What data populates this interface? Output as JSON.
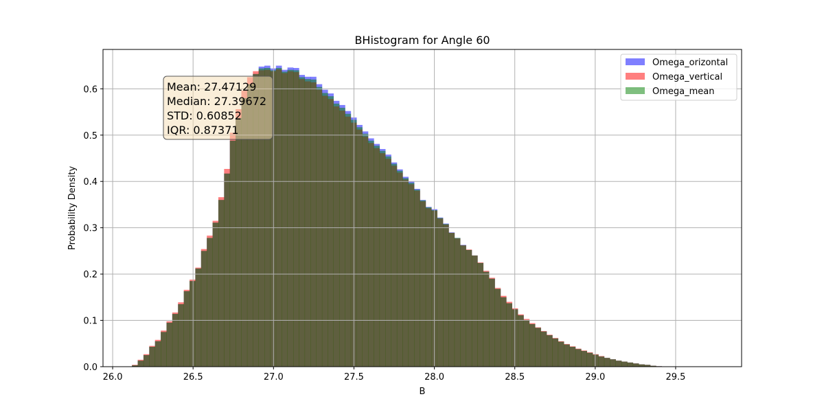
{
  "chart_data": {
    "type": "bar",
    "title": "BHistogram for Angle 60",
    "xlabel": "B",
    "ylabel": "Probability Density",
    "xlim": [
      25.94,
      29.91
    ],
    "ylim": [
      0,
      0.685
    ],
    "xticks": [
      "26.0",
      "26.5",
      "27.0",
      "27.5",
      "28.0",
      "28.5",
      "29.0",
      "29.5"
    ],
    "yticks": [
      "0.0",
      "0.1",
      "0.2",
      "0.3",
      "0.4",
      "0.5",
      "0.6"
    ],
    "grid": true,
    "legend_position": "top-right",
    "bin_start": 26.12,
    "bin_width": 0.0358,
    "series": [
      {
        "name": "Omega_orizontal",
        "color": "#0000ff",
        "alpha": 0.5,
        "values": [
          0.003,
          0.013,
          0.025,
          0.043,
          0.055,
          0.075,
          0.095,
          0.114,
          0.135,
          0.163,
          0.185,
          0.212,
          0.25,
          0.278,
          0.311,
          0.36,
          0.417,
          0.488,
          0.537,
          0.58,
          0.61,
          0.632,
          0.648,
          0.65,
          0.644,
          0.65,
          0.641,
          0.646,
          0.645,
          0.63,
          0.626,
          0.626,
          0.61,
          0.598,
          0.59,
          0.574,
          0.565,
          0.552,
          0.538,
          0.522,
          0.508,
          0.493,
          0.481,
          0.47,
          0.458,
          0.441,
          0.426,
          0.41,
          0.4,
          0.384,
          0.36,
          0.345,
          0.34,
          0.322,
          0.309,
          0.29,
          0.278,
          0.263,
          0.252,
          0.24,
          0.224,
          0.205,
          0.19,
          0.168,
          0.15,
          0.137,
          0.124,
          0.111,
          0.101,
          0.092,
          0.084,
          0.076,
          0.068,
          0.061,
          0.054,
          0.048,
          0.043,
          0.038,
          0.034,
          0.03,
          0.026,
          0.022,
          0.019,
          0.016,
          0.013,
          0.011,
          0.009,
          0.007,
          0.005,
          0.004,
          0.002,
          0.001
        ]
      },
      {
        "name": "Omega_vertical",
        "color": "#ff0000",
        "alpha": 0.5,
        "values": [
          0.004,
          0.015,
          0.027,
          0.045,
          0.058,
          0.078,
          0.098,
          0.117,
          0.139,
          0.166,
          0.188,
          0.214,
          0.254,
          0.283,
          0.315,
          0.366,
          0.427,
          0.505,
          0.556,
          0.596,
          0.625,
          0.638,
          0.64,
          0.641,
          0.638,
          0.642,
          0.634,
          0.638,
          0.636,
          0.621,
          0.616,
          0.614,
          0.598,
          0.585,
          0.578,
          0.562,
          0.553,
          0.54,
          0.527,
          0.512,
          0.497,
          0.483,
          0.472,
          0.461,
          0.449,
          0.434,
          0.419,
          0.404,
          0.394,
          0.38,
          0.357,
          0.342,
          0.337,
          0.32,
          0.307,
          0.289,
          0.277,
          0.262,
          0.253,
          0.24,
          0.225,
          0.207,
          0.192,
          0.17,
          0.153,
          0.14,
          0.126,
          0.113,
          0.103,
          0.094,
          0.085,
          0.077,
          0.069,
          0.062,
          0.055,
          0.049,
          0.044,
          0.039,
          0.035,
          0.031,
          0.027,
          0.023,
          0.019,
          0.016,
          0.013,
          0.011,
          0.009,
          0.007,
          0.005,
          0.004,
          0.002,
          0.001
        ]
      },
      {
        "name": "Omega_mean",
        "color": "#008000",
        "alpha": 0.5,
        "values": [
          0.003,
          0.013,
          0.025,
          0.043,
          0.055,
          0.075,
          0.095,
          0.114,
          0.135,
          0.163,
          0.185,
          0.212,
          0.25,
          0.278,
          0.311,
          0.36,
          0.417,
          0.488,
          0.537,
          0.58,
          0.61,
          0.632,
          0.644,
          0.645,
          0.64,
          0.645,
          0.637,
          0.641,
          0.64,
          0.625,
          0.621,
          0.62,
          0.604,
          0.591,
          0.584,
          0.568,
          0.559,
          0.546,
          0.533,
          0.517,
          0.503,
          0.488,
          0.477,
          0.466,
          0.454,
          0.438,
          0.423,
          0.407,
          0.397,
          0.382,
          0.359,
          0.344,
          0.338,
          0.321,
          0.308,
          0.289,
          0.278,
          0.262,
          0.252,
          0.24,
          0.224,
          0.205,
          0.19,
          0.168,
          0.15,
          0.137,
          0.124,
          0.111,
          0.101,
          0.092,
          0.084,
          0.076,
          0.068,
          0.061,
          0.054,
          0.048,
          0.043,
          0.038,
          0.034,
          0.03,
          0.026,
          0.022,
          0.019,
          0.016,
          0.013,
          0.011,
          0.009,
          0.007,
          0.005,
          0.004,
          0.002,
          0.001
        ]
      }
    ],
    "stats": [
      "Mean: 27.47129",
      "Median: 27.39672",
      "STD: 0.60852",
      "IQR: 0.87371"
    ]
  }
}
